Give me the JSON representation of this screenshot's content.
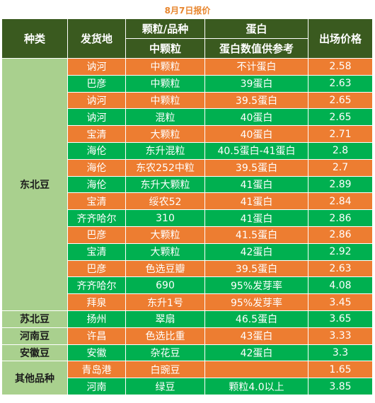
{
  "title": "8月7日报价",
  "headers": {
    "category": "种类",
    "origin": "发货地",
    "grain_top": "颗粒/品种",
    "grain_sub": "中颗粒",
    "protein_top": "蛋白",
    "protein_sub": "蛋白数值供参考",
    "price": "出场价格"
  },
  "categories": [
    {
      "name": "东北豆",
      "rows": 15
    },
    {
      "name": "苏北豆",
      "rows": 1
    },
    {
      "name": "河南豆",
      "rows": 1
    },
    {
      "name": "安徽豆",
      "rows": 1
    },
    {
      "name": "其他品种",
      "rows": 2
    }
  ],
  "rows": [
    {
      "origin": "讷河",
      "grain": "中颗粒",
      "protein": "不计蛋白",
      "price": "2.58",
      "color": "orange"
    },
    {
      "origin": "巴彦",
      "grain": "中颗粒",
      "protein": "39蛋白",
      "price": "2.63",
      "color": "green"
    },
    {
      "origin": "讷河",
      "grain": "中颗粒",
      "protein": "39.5蛋白",
      "price": "2.65",
      "color": "orange"
    },
    {
      "origin": "讷河",
      "grain": "混粒",
      "protein": "40蛋白",
      "price": "2.65",
      "color": "green"
    },
    {
      "origin": "宝清",
      "grain": "大颗粒",
      "protein": "40蛋白",
      "price": "2.71",
      "color": "orange"
    },
    {
      "origin": "海伦",
      "grain": "东升混粒",
      "protein": "40.5蛋白-41蛋白",
      "price": "2.8",
      "color": "green"
    },
    {
      "origin": "海伦",
      "grain": "东农252中粒",
      "protein": "39.5蛋白",
      "price": "2.7",
      "color": "orange"
    },
    {
      "origin": "海伦",
      "grain": "东升大颗粒",
      "protein": "41蛋白",
      "price": "2.89",
      "color": "green"
    },
    {
      "origin": "宝清",
      "grain": "绥农52",
      "protein": "41蛋白",
      "price": "2.84",
      "color": "orange"
    },
    {
      "origin": "齐齐哈尔",
      "grain": "310",
      "protein": "41蛋白",
      "price": "2.86",
      "color": "green"
    },
    {
      "origin": "巴彦",
      "grain": "大颗粒",
      "protein": "41.5蛋白",
      "price": "2.86",
      "color": "orange"
    },
    {
      "origin": "宝清",
      "grain": "大颗粒",
      "protein": "42蛋白",
      "price": "2.92",
      "color": "green"
    },
    {
      "origin": "巴彦",
      "grain": "色选豆瓣",
      "protein": "39.5蛋白",
      "price": "2.63",
      "color": "orange"
    },
    {
      "origin": "齐齐哈尔",
      "grain": "690",
      "protein": "95%发芽率",
      "price": "4.08",
      "color": "green"
    },
    {
      "origin": "拜泉",
      "grain": "东升1号",
      "protein": "95%发芽率",
      "price": "3.45",
      "color": "orange"
    },
    {
      "origin": "扬州",
      "grain": "翠扇",
      "protein": "46.5蛋白",
      "price": "3.65",
      "color": "green"
    },
    {
      "origin": "许昌",
      "grain": "色选比重",
      "protein": "43蛋白",
      "price": "3.33",
      "color": "orange"
    },
    {
      "origin": "安徽",
      "grain": "杂花豆",
      "protein": "42蛋白",
      "price": "3.3",
      "color": "green"
    },
    {
      "origin": "青岛港",
      "grain": "白豌豆",
      "protein": "",
      "price": "1.65",
      "color": "orange"
    },
    {
      "origin": "河南",
      "grain": "绿豆",
      "protein": "颗粒4.0以上",
      "price": "3.85",
      "color": "green"
    }
  ]
}
